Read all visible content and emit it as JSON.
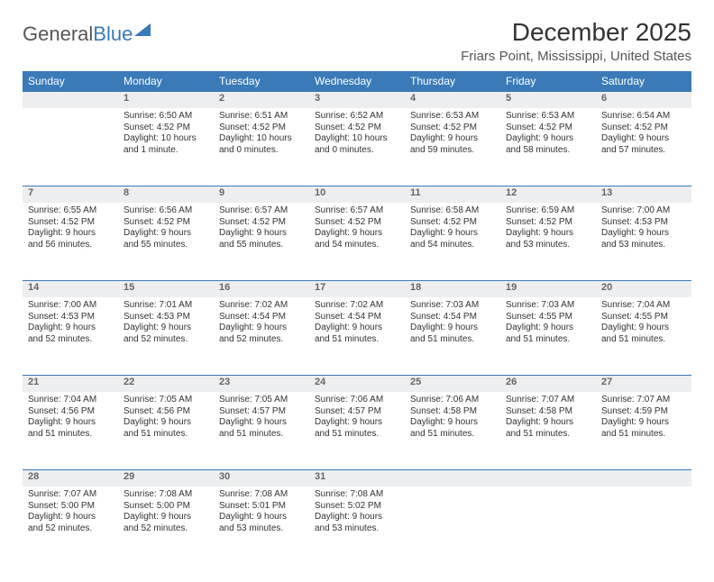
{
  "brand": {
    "part1": "General",
    "part2": "Blue"
  },
  "title": "December 2025",
  "location": "Friars Point, Mississippi, United States",
  "colors": {
    "accent": "#3a7ab8",
    "header_bg": "#3a7ab8",
    "daynum_bg": "#eceeef"
  },
  "day_headers": [
    "Sunday",
    "Monday",
    "Tuesday",
    "Wednesday",
    "Thursday",
    "Friday",
    "Saturday"
  ],
  "weeks": [
    {
      "nums": [
        "",
        "1",
        "2",
        "3",
        "4",
        "5",
        "6"
      ],
      "cells": [
        {
          "sunrise": "",
          "sunset": "",
          "daylight": ""
        },
        {
          "sunrise": "Sunrise: 6:50 AM",
          "sunset": "Sunset: 4:52 PM",
          "daylight": "Daylight: 10 hours and 1 minute."
        },
        {
          "sunrise": "Sunrise: 6:51 AM",
          "sunset": "Sunset: 4:52 PM",
          "daylight": "Daylight: 10 hours and 0 minutes."
        },
        {
          "sunrise": "Sunrise: 6:52 AM",
          "sunset": "Sunset: 4:52 PM",
          "daylight": "Daylight: 10 hours and 0 minutes."
        },
        {
          "sunrise": "Sunrise: 6:53 AM",
          "sunset": "Sunset: 4:52 PM",
          "daylight": "Daylight: 9 hours and 59 minutes."
        },
        {
          "sunrise": "Sunrise: 6:53 AM",
          "sunset": "Sunset: 4:52 PM",
          "daylight": "Daylight: 9 hours and 58 minutes."
        },
        {
          "sunrise": "Sunrise: 6:54 AM",
          "sunset": "Sunset: 4:52 PM",
          "daylight": "Daylight: 9 hours and 57 minutes."
        }
      ]
    },
    {
      "nums": [
        "7",
        "8",
        "9",
        "10",
        "11",
        "12",
        "13"
      ],
      "cells": [
        {
          "sunrise": "Sunrise: 6:55 AM",
          "sunset": "Sunset: 4:52 PM",
          "daylight": "Daylight: 9 hours and 56 minutes."
        },
        {
          "sunrise": "Sunrise: 6:56 AM",
          "sunset": "Sunset: 4:52 PM",
          "daylight": "Daylight: 9 hours and 55 minutes."
        },
        {
          "sunrise": "Sunrise: 6:57 AM",
          "sunset": "Sunset: 4:52 PM",
          "daylight": "Daylight: 9 hours and 55 minutes."
        },
        {
          "sunrise": "Sunrise: 6:57 AM",
          "sunset": "Sunset: 4:52 PM",
          "daylight": "Daylight: 9 hours and 54 minutes."
        },
        {
          "sunrise": "Sunrise: 6:58 AM",
          "sunset": "Sunset: 4:52 PM",
          "daylight": "Daylight: 9 hours and 54 minutes."
        },
        {
          "sunrise": "Sunrise: 6:59 AM",
          "sunset": "Sunset: 4:52 PM",
          "daylight": "Daylight: 9 hours and 53 minutes."
        },
        {
          "sunrise": "Sunrise: 7:00 AM",
          "sunset": "Sunset: 4:53 PM",
          "daylight": "Daylight: 9 hours and 53 minutes."
        }
      ]
    },
    {
      "nums": [
        "14",
        "15",
        "16",
        "17",
        "18",
        "19",
        "20"
      ],
      "cells": [
        {
          "sunrise": "Sunrise: 7:00 AM",
          "sunset": "Sunset: 4:53 PM",
          "daylight": "Daylight: 9 hours and 52 minutes."
        },
        {
          "sunrise": "Sunrise: 7:01 AM",
          "sunset": "Sunset: 4:53 PM",
          "daylight": "Daylight: 9 hours and 52 minutes."
        },
        {
          "sunrise": "Sunrise: 7:02 AM",
          "sunset": "Sunset: 4:54 PM",
          "daylight": "Daylight: 9 hours and 52 minutes."
        },
        {
          "sunrise": "Sunrise: 7:02 AM",
          "sunset": "Sunset: 4:54 PM",
          "daylight": "Daylight: 9 hours and 51 minutes."
        },
        {
          "sunrise": "Sunrise: 7:03 AM",
          "sunset": "Sunset: 4:54 PM",
          "daylight": "Daylight: 9 hours and 51 minutes."
        },
        {
          "sunrise": "Sunrise: 7:03 AM",
          "sunset": "Sunset: 4:55 PM",
          "daylight": "Daylight: 9 hours and 51 minutes."
        },
        {
          "sunrise": "Sunrise: 7:04 AM",
          "sunset": "Sunset: 4:55 PM",
          "daylight": "Daylight: 9 hours and 51 minutes."
        }
      ]
    },
    {
      "nums": [
        "21",
        "22",
        "23",
        "24",
        "25",
        "26",
        "27"
      ],
      "cells": [
        {
          "sunrise": "Sunrise: 7:04 AM",
          "sunset": "Sunset: 4:56 PM",
          "daylight": "Daylight: 9 hours and 51 minutes."
        },
        {
          "sunrise": "Sunrise: 7:05 AM",
          "sunset": "Sunset: 4:56 PM",
          "daylight": "Daylight: 9 hours and 51 minutes."
        },
        {
          "sunrise": "Sunrise: 7:05 AM",
          "sunset": "Sunset: 4:57 PM",
          "daylight": "Daylight: 9 hours and 51 minutes."
        },
        {
          "sunrise": "Sunrise: 7:06 AM",
          "sunset": "Sunset: 4:57 PM",
          "daylight": "Daylight: 9 hours and 51 minutes."
        },
        {
          "sunrise": "Sunrise: 7:06 AM",
          "sunset": "Sunset: 4:58 PM",
          "daylight": "Daylight: 9 hours and 51 minutes."
        },
        {
          "sunrise": "Sunrise: 7:07 AM",
          "sunset": "Sunset: 4:58 PM",
          "daylight": "Daylight: 9 hours and 51 minutes."
        },
        {
          "sunrise": "Sunrise: 7:07 AM",
          "sunset": "Sunset: 4:59 PM",
          "daylight": "Daylight: 9 hours and 51 minutes."
        }
      ]
    },
    {
      "nums": [
        "28",
        "29",
        "30",
        "31",
        "",
        "",
        ""
      ],
      "cells": [
        {
          "sunrise": "Sunrise: 7:07 AM",
          "sunset": "Sunset: 5:00 PM",
          "daylight": "Daylight: 9 hours and 52 minutes."
        },
        {
          "sunrise": "Sunrise: 7:08 AM",
          "sunset": "Sunset: 5:00 PM",
          "daylight": "Daylight: 9 hours and 52 minutes."
        },
        {
          "sunrise": "Sunrise: 7:08 AM",
          "sunset": "Sunset: 5:01 PM",
          "daylight": "Daylight: 9 hours and 53 minutes."
        },
        {
          "sunrise": "Sunrise: 7:08 AM",
          "sunset": "Sunset: 5:02 PM",
          "daylight": "Daylight: 9 hours and 53 minutes."
        },
        {
          "sunrise": "",
          "sunset": "",
          "daylight": ""
        },
        {
          "sunrise": "",
          "sunset": "",
          "daylight": ""
        },
        {
          "sunrise": "",
          "sunset": "",
          "daylight": ""
        }
      ]
    }
  ]
}
